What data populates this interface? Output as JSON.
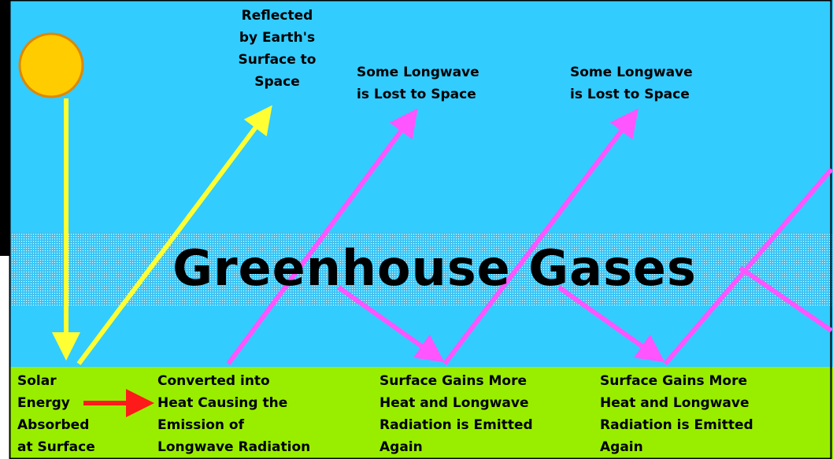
{
  "title": "Greenhouse Gases",
  "labels": [
    {
      "lines": [
        "Reflected",
        "by Earth's",
        "Surface to",
        "Space"
      ]
    },
    {
      "lines": [
        "Some Longwave",
        "is Lost to Space"
      ]
    },
    {
      "lines": [
        "Some Longwave",
        "is Lost to Space"
      ]
    },
    {
      "lines": [
        "Solar",
        "Energy",
        "Absorbed",
        "at Surface"
      ]
    },
    {
      "lines": [
        "Converted into",
        "Heat Causing the",
        "Emission of",
        "Longwave Radiation"
      ]
    },
    {
      "lines": [
        "Surface Gains More",
        "Heat and Longwave",
        "Radiation is Emitted",
        "Again"
      ]
    },
    {
      "lines": [
        "Surface Gains More",
        "Heat and Longwave",
        "Radiation is Emitted",
        "Again"
      ]
    }
  ]
}
